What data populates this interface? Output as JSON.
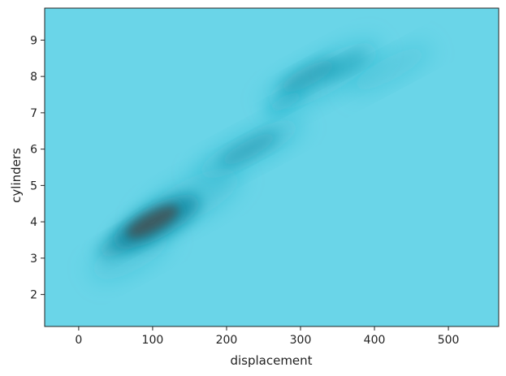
{
  "chart_data": {
    "type": "heatmap",
    "subtype": "2d-kde-density",
    "xlabel": "displacement",
    "ylabel": "cylinders",
    "xlim": [
      -46,
      568
    ],
    "ylim": [
      1.12,
      9.88
    ],
    "xticks": [
      0,
      100,
      200,
      300,
      400,
      500
    ],
    "yticks": [
      2,
      3,
      4,
      5,
      6,
      7,
      8,
      9
    ],
    "grid": false,
    "colors": {
      "background": "#6ad5e8",
      "low_density": "#6ad5e8",
      "mid_density": "#1aa9c4",
      "high_density": "#0f8aa3",
      "peak_density": "#4a4a4a",
      "axes": "#222222"
    },
    "density_peaks": [
      {
        "x": 100,
        "y": 4,
        "relative_density": 1.0
      },
      {
        "x": 65,
        "y": 3.5,
        "relative_density": 0.55
      },
      {
        "x": 230,
        "y": 6,
        "relative_density": 0.45
      },
      {
        "x": 310,
        "y": 8,
        "relative_density": 0.5
      },
      {
        "x": 360,
        "y": 8.3,
        "relative_density": 0.3
      },
      {
        "x": 420,
        "y": 8.2,
        "relative_density": 0.2
      },
      {
        "x": 150,
        "y": 4.6,
        "relative_density": 0.25
      }
    ]
  }
}
